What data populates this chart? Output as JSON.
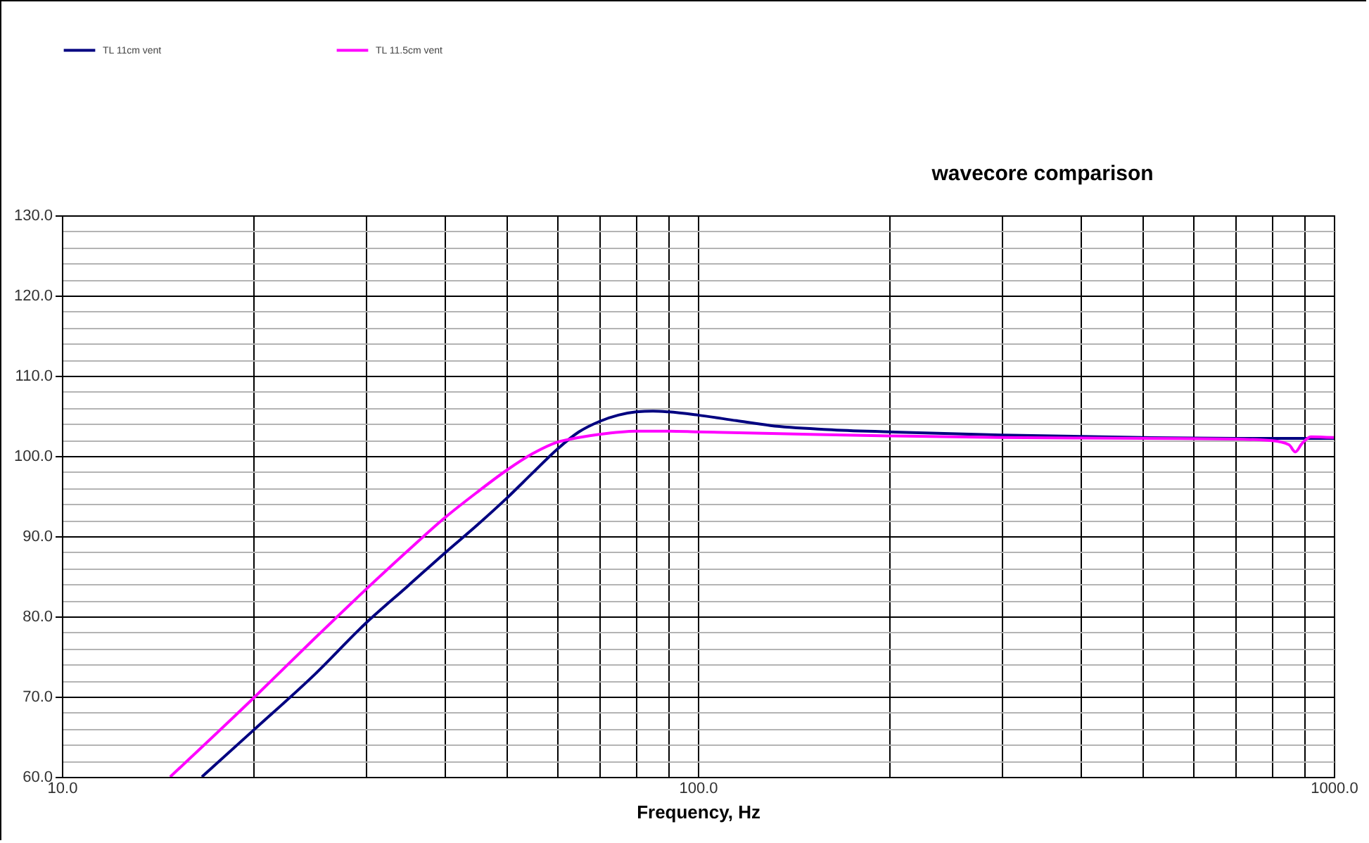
{
  "chart_data": {
    "type": "line",
    "title": "wavecore comparison",
    "xlabel": "Frequency,  Hz",
    "log": "x",
    "xlim": [
      10,
      1000
    ],
    "xticks": [
      {
        "value": 10,
        "label": "10.0"
      },
      {
        "value": 20,
        "label": null
      },
      {
        "value": 30,
        "label": null
      },
      {
        "value": 40,
        "label": null
      },
      {
        "value": 50,
        "label": null
      },
      {
        "value": 60,
        "label": null
      },
      {
        "value": 70,
        "label": null
      },
      {
        "value": 80,
        "label": null
      },
      {
        "value": 90,
        "label": null
      },
      {
        "value": 100,
        "label": "100.0"
      },
      {
        "value": 200,
        "label": null
      },
      {
        "value": 300,
        "label": null
      },
      {
        "value": 400,
        "label": null
      },
      {
        "value": 500,
        "label": null
      },
      {
        "value": 600,
        "label": null
      },
      {
        "value": 700,
        "label": null
      },
      {
        "value": 800,
        "label": null
      },
      {
        "value": 900,
        "label": null
      },
      {
        "value": 1000,
        "label": "1000.0"
      }
    ],
    "ylim": [
      60,
      130
    ],
    "yticks": [
      {
        "value": 60,
        "label": "60.0"
      },
      {
        "value": 62,
        "label": null
      },
      {
        "value": 64,
        "label": null
      },
      {
        "value": 66,
        "label": null
      },
      {
        "value": 68,
        "label": null
      },
      {
        "value": 70,
        "label": "70.0"
      },
      {
        "value": 72,
        "label": null
      },
      {
        "value": 74,
        "label": null
      },
      {
        "value": 76,
        "label": null
      },
      {
        "value": 78,
        "label": null
      },
      {
        "value": 80,
        "label": "80.0"
      },
      {
        "value": 82,
        "label": null
      },
      {
        "value": 84,
        "label": null
      },
      {
        "value": 86,
        "label": null
      },
      {
        "value": 88,
        "label": null
      },
      {
        "value": 90,
        "label": "90.0"
      },
      {
        "value": 92,
        "label": null
      },
      {
        "value": 94,
        "label": null
      },
      {
        "value": 96,
        "label": null
      },
      {
        "value": 98,
        "label": null
      },
      {
        "value": 100,
        "label": "100.0"
      },
      {
        "value": 102,
        "label": null
      },
      {
        "value": 104,
        "label": null
      },
      {
        "value": 106,
        "label": null
      },
      {
        "value": 108,
        "label": null
      },
      {
        "value": 110,
        "label": "110.0"
      },
      {
        "value": 112,
        "label": null
      },
      {
        "value": 114,
        "label": null
      },
      {
        "value": 116,
        "label": null
      },
      {
        "value": 118,
        "label": null
      },
      {
        "value": 120,
        "label": "120.0"
      },
      {
        "value": 122,
        "label": null
      },
      {
        "value": 124,
        "label": null
      },
      {
        "value": 126,
        "label": null
      },
      {
        "value": 128,
        "label": null
      },
      {
        "value": 130,
        "label": "130.0"
      }
    ],
    "grid": true,
    "legend": "top left",
    "marker": "none",
    "line_style": "solid",
    "series": [
      {
        "name": "TL 11cm vent",
        "color": "#000080",
        "x": [
          16.6,
          20,
          25,
          30,
          35,
          40,
          45,
          50,
          55,
          60,
          65,
          70,
          75,
          80,
          85,
          90,
          100,
          115,
          130,
          160,
          200,
          300,
          500,
          700,
          1000
        ],
        "values": [
          60,
          65.8,
          72.8,
          79.1,
          83.8,
          87.9,
          91.4,
          94.7,
          97.9,
          100.8,
          103,
          104.3,
          105.1,
          105.5,
          105.6,
          105.5,
          105.1,
          104.4,
          103.8,
          103.3,
          103,
          102.6,
          102.3,
          102.2,
          102.2
        ]
      },
      {
        "name": "TL 11.5cm vent",
        "color": "#ff00ff",
        "x": [
          14.8,
          20,
          25,
          30,
          35,
          40,
          45,
          50,
          55,
          60,
          65,
          70,
          80,
          90,
          100,
          150,
          200,
          300,
          500,
          700,
          800,
          850,
          870,
          890,
          920,
          1000
        ],
        "values": [
          60,
          69.8,
          77.3,
          83.3,
          88.2,
          92.3,
          95.5,
          98.2,
          100.3,
          101.7,
          102.3,
          102.7,
          103.1,
          103.1,
          103,
          102.7,
          102.5,
          102.3,
          102.2,
          102.1,
          101.9,
          101.4,
          100.5,
          101.5,
          102.4,
          102.3
        ]
      }
    ]
  }
}
